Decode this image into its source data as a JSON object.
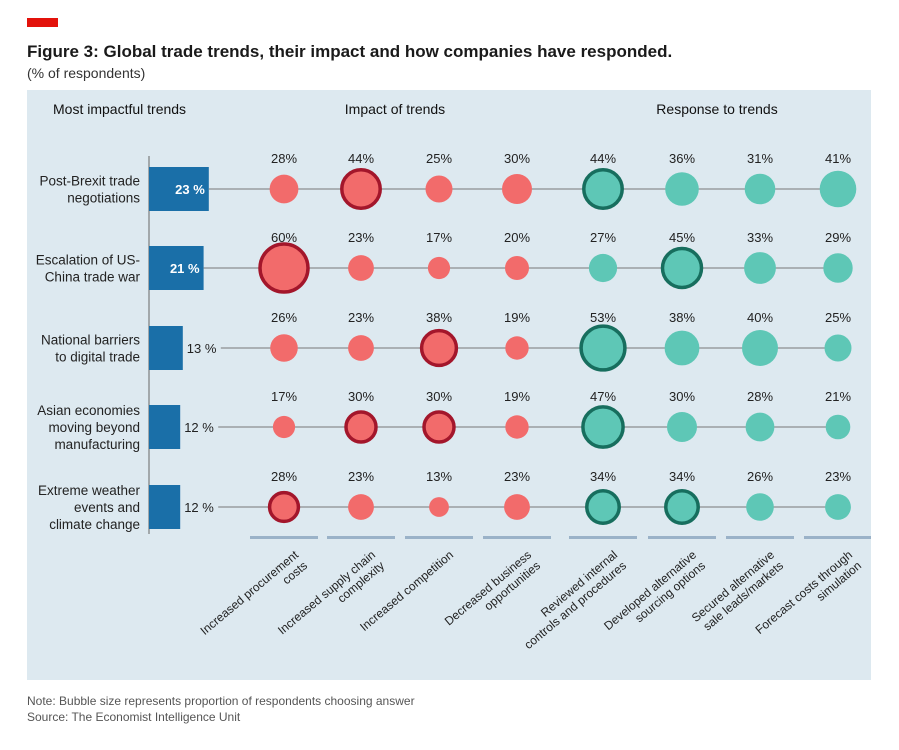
{
  "header": {
    "title": "Figure 3: Global trade trends, their impact and how companies have responded.",
    "subtitle": "(% of respondents)"
  },
  "footer": {
    "note": "Note: Bubble size represents proportion of respondents choosing answer",
    "source": "Source: The Economist Intelligence Unit"
  },
  "colors": {
    "brand_red": "#e3120b",
    "panel_bg": "#dde9f0",
    "bar_blue": "#1a6fa8",
    "impact_bubble": "#f26b6b",
    "impact_highlight_border": "#a3162b",
    "response_bubble": "#5ec7b6",
    "response_highlight_border": "#176e5e"
  },
  "chart_data": {
    "type": "bubble-matrix",
    "section_headers": {
      "trends": "Most impactful  trends",
      "impact": "Impact of trends",
      "response": "Response to trends"
    },
    "trends": [
      {
        "label": [
          "Post-Brexit trade",
          "negotiations"
        ],
        "value": 23,
        "value_label": "23 %"
      },
      {
        "label": [
          "Escalation of US-",
          "China trade war"
        ],
        "value": 21,
        "value_label": "21 %"
      },
      {
        "label": [
          "National barriers",
          "to digital trade"
        ],
        "value": 13,
        "value_label": "13 %"
      },
      {
        "label": [
          "Asian economies",
          "moving beyond",
          "manufacturing"
        ],
        "value": 12,
        "value_label": "12 %"
      },
      {
        "label": [
          "Extreme weather",
          "events and",
          "climate change"
        ],
        "value": 12,
        "value_label": "12 %"
      }
    ],
    "columns": [
      {
        "label": [
          "Increased procurement",
          "costs"
        ],
        "group": "impact"
      },
      {
        "label": [
          "Increased supply chain",
          "complexity"
        ],
        "group": "impact"
      },
      {
        "label": [
          "Increased competition"
        ],
        "group": "impact"
      },
      {
        "label": [
          "Decreased business",
          "opportunities"
        ],
        "group": "impact"
      },
      {
        "label": [
          "Reviewed internal",
          "controls and procedures"
        ],
        "group": "response"
      },
      {
        "label": [
          "Developed alternative",
          "sourcing options"
        ],
        "group": "response"
      },
      {
        "label": [
          "Secured alternative",
          "sale leads/markets"
        ],
        "group": "response"
      },
      {
        "label": [
          "Forecast costs through",
          "simulation"
        ],
        "group": "response"
      }
    ],
    "values": [
      [
        28,
        44,
        25,
        30,
        44,
        36,
        31,
        41
      ],
      [
        60,
        23,
        17,
        20,
        27,
        45,
        33,
        29
      ],
      [
        26,
        23,
        38,
        19,
        53,
        38,
        40,
        25
      ],
      [
        17,
        30,
        30,
        19,
        47,
        30,
        28,
        21
      ],
      [
        28,
        23,
        13,
        23,
        34,
        34,
        26,
        23
      ]
    ],
    "highlighted": [
      [
        false,
        true,
        false,
        false,
        true,
        false,
        false,
        false
      ],
      [
        true,
        false,
        false,
        false,
        false,
        true,
        false,
        false
      ],
      [
        false,
        false,
        true,
        false,
        true,
        false,
        false,
        false
      ],
      [
        false,
        true,
        true,
        false,
        true,
        false,
        false,
        false
      ],
      [
        true,
        false,
        false,
        false,
        true,
        true,
        false,
        false
      ]
    ],
    "value_suffix": "%"
  }
}
